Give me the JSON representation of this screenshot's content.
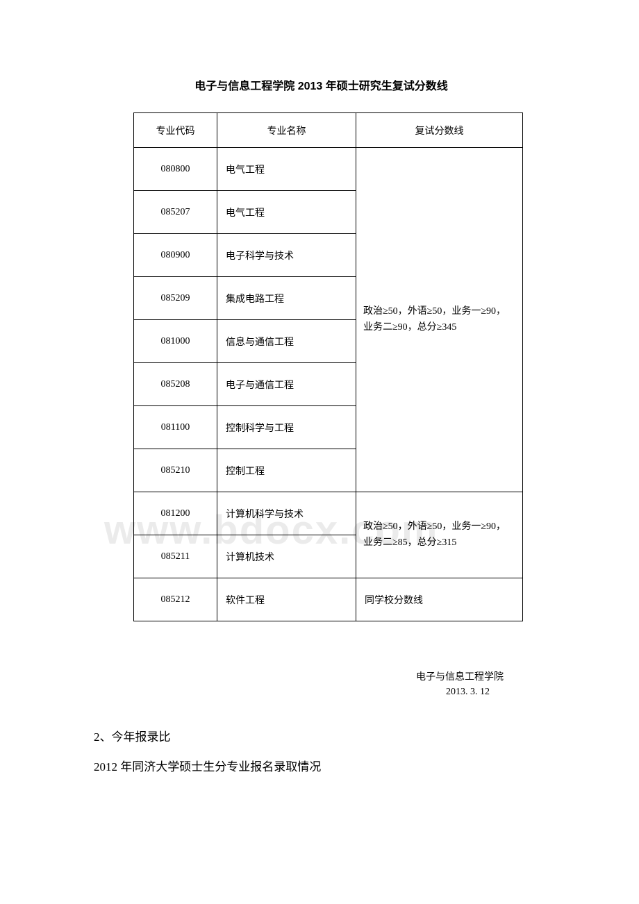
{
  "title": "电子与信息工程学院 2013 年硕士研究生复试分数线",
  "header": {
    "code": "专业代码",
    "name": "专业名称",
    "score": "复试分数线"
  },
  "rows": [
    {
      "code": "080800",
      "name": "电气工程"
    },
    {
      "code": "085207",
      "name": "电气工程"
    },
    {
      "code": "080900",
      "name": "电子科学与技术"
    },
    {
      "code": "085209",
      "name": "集成电路工程"
    },
    {
      "code": "081000",
      "name": "信息与通信工程"
    },
    {
      "code": "085208",
      "name": "电子与通信工程"
    },
    {
      "code": "081100",
      "name": "控制科学与工程"
    },
    {
      "code": "085210",
      "name": "控制工程"
    },
    {
      "code": "081200",
      "name": "计算机科学与技术"
    },
    {
      "code": "085211",
      "name": "计算机技术"
    },
    {
      "code": "085212",
      "name": "软件工程"
    }
  ],
  "score1": "政治≥50，外语≥50，业务一≥90，业务二≥90，总分≥345",
  "score2": "政治≥50，外语≥50，业务一≥90，业务二≥85，总分≥315",
  "score3": "同学校分数线",
  "signature": {
    "dept": "电子与信息工程学院",
    "date": "2013. 3. 12"
  },
  "section_num": "2、今年报录比",
  "section_text": "2012 年同济大学硕士生分专业报名录取情况",
  "watermark": "www.bdocx.com"
}
